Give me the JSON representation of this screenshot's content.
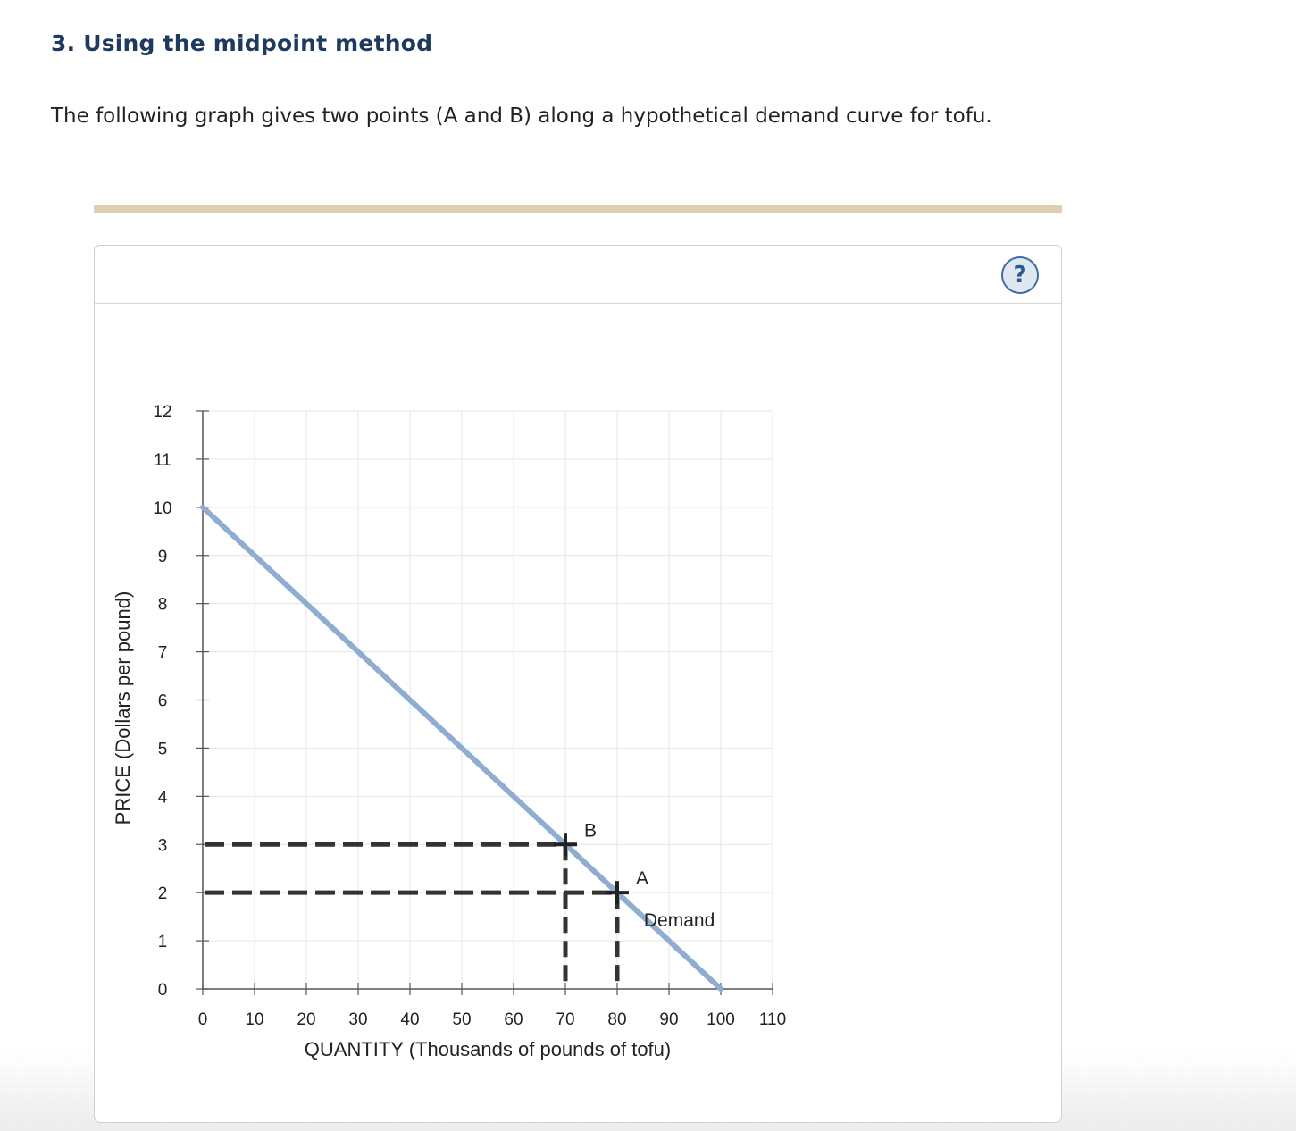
{
  "question": {
    "heading": "3. Using the midpoint method",
    "intro": "The following graph gives two points (A and B) along a hypothetical demand curve for tofu."
  },
  "panel": {
    "help_icon": "question-mark-icon",
    "help_label": "?"
  },
  "colors": {
    "heading": "#1f3a5f",
    "demand_line": "#8eadd0",
    "dashed_lines": "#333333",
    "tan_bar": "#ddd0b0",
    "help_ring": "#3e6ea3"
  },
  "chart_data": {
    "type": "line",
    "xlabel": "QUANTITY (Thousands of pounds of tofu)",
    "ylabel": "PRICE (Dollars per pound)",
    "xlim": [
      0,
      110
    ],
    "ylim": [
      0,
      12
    ],
    "x_ticks": [
      0,
      10,
      20,
      30,
      40,
      50,
      60,
      70,
      80,
      90,
      100,
      110
    ],
    "y_ticks": [
      0,
      1,
      2,
      3,
      4,
      5,
      6,
      7,
      8,
      9,
      10,
      11,
      12
    ],
    "grid": true,
    "series": [
      {
        "name": "Demand",
        "points": [
          [
            0,
            10
          ],
          [
            100,
            0
          ]
        ]
      }
    ],
    "points": [
      {
        "label": "A",
        "x": 80,
        "y": 2
      },
      {
        "label": "B",
        "x": 70,
        "y": 3
      }
    ]
  }
}
